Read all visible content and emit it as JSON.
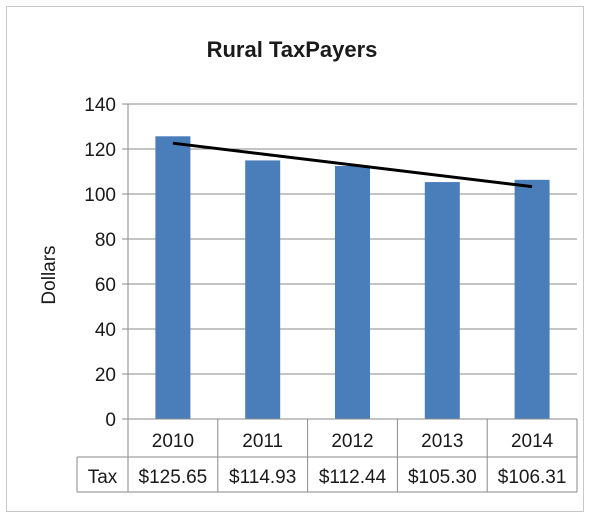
{
  "chart_data": {
    "type": "bar",
    "title": "Rural TaxPayers",
    "ylabel": "Dollars",
    "xlabel": "",
    "categories": [
      "2010",
      "2011",
      "2012",
      "2013",
      "2014"
    ],
    "series": [
      {
        "name": "Tax",
        "values": [
          125.65,
          114.93,
          112.44,
          105.3,
          106.31
        ],
        "value_labels": [
          "$125.65",
          "$114.93",
          "$112.44",
          "$105.30",
          "$106.31"
        ],
        "color": "#4a7ebb"
      }
    ],
    "trendline": {
      "type": "linear",
      "color": "#000000"
    },
    "ylim": [
      0,
      140
    ],
    "yticks": [
      0,
      20,
      40,
      60,
      80,
      100,
      120,
      140
    ],
    "grid": true,
    "legend": "none",
    "data_table": true
  }
}
